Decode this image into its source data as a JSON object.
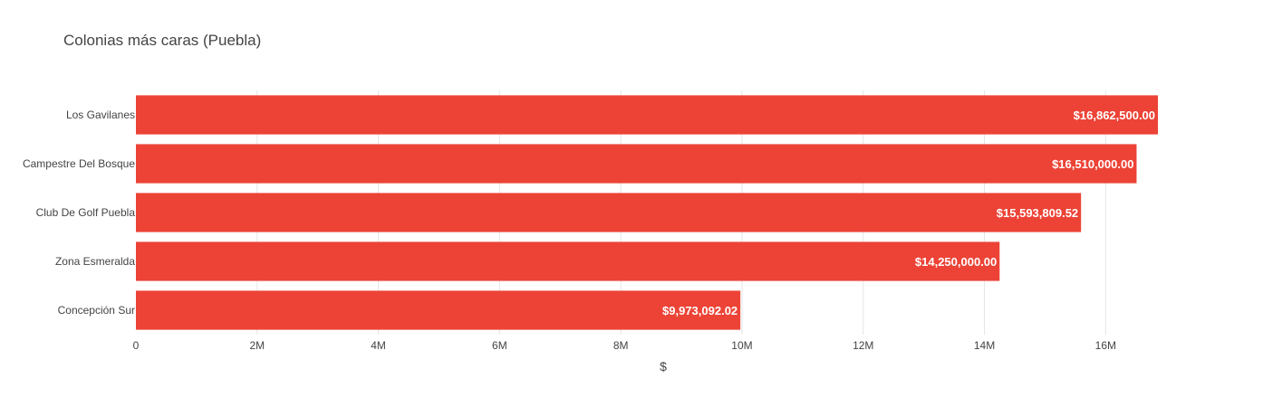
{
  "chart_data": {
    "type": "bar",
    "orientation": "horizontal",
    "title": "Colonias más caras (Puebla)",
    "xlabel": "$",
    "ylabel": "",
    "xlim": [
      0,
      17400000
    ],
    "grid": true,
    "categories": [
      "Los Gavilanes",
      "Campestre Del Bosque",
      "Club De Golf Puebla",
      "Zona Esmeralda",
      "Concepción Sur"
    ],
    "values": [
      16862500.0,
      16510000.0,
      15593809.52,
      14250000.0,
      9973092.02
    ],
    "value_labels": [
      "$16,862,500.00",
      "$16,510,000.00",
      "$15,593,809.52",
      "$14,250,000.00",
      "$9,973,092.02"
    ],
    "ticks": [
      {
        "value": 0,
        "label": "0"
      },
      {
        "value": 2000000,
        "label": "2M"
      },
      {
        "value": 4000000,
        "label": "4M"
      },
      {
        "value": 6000000,
        "label": "6M"
      },
      {
        "value": 8000000,
        "label": "8M"
      },
      {
        "value": 10000000,
        "label": "10M"
      },
      {
        "value": 12000000,
        "label": "12M"
      },
      {
        "value": 14000000,
        "label": "14M"
      },
      {
        "value": 16000000,
        "label": "16M"
      }
    ],
    "bar_color": "#ec4336"
  }
}
